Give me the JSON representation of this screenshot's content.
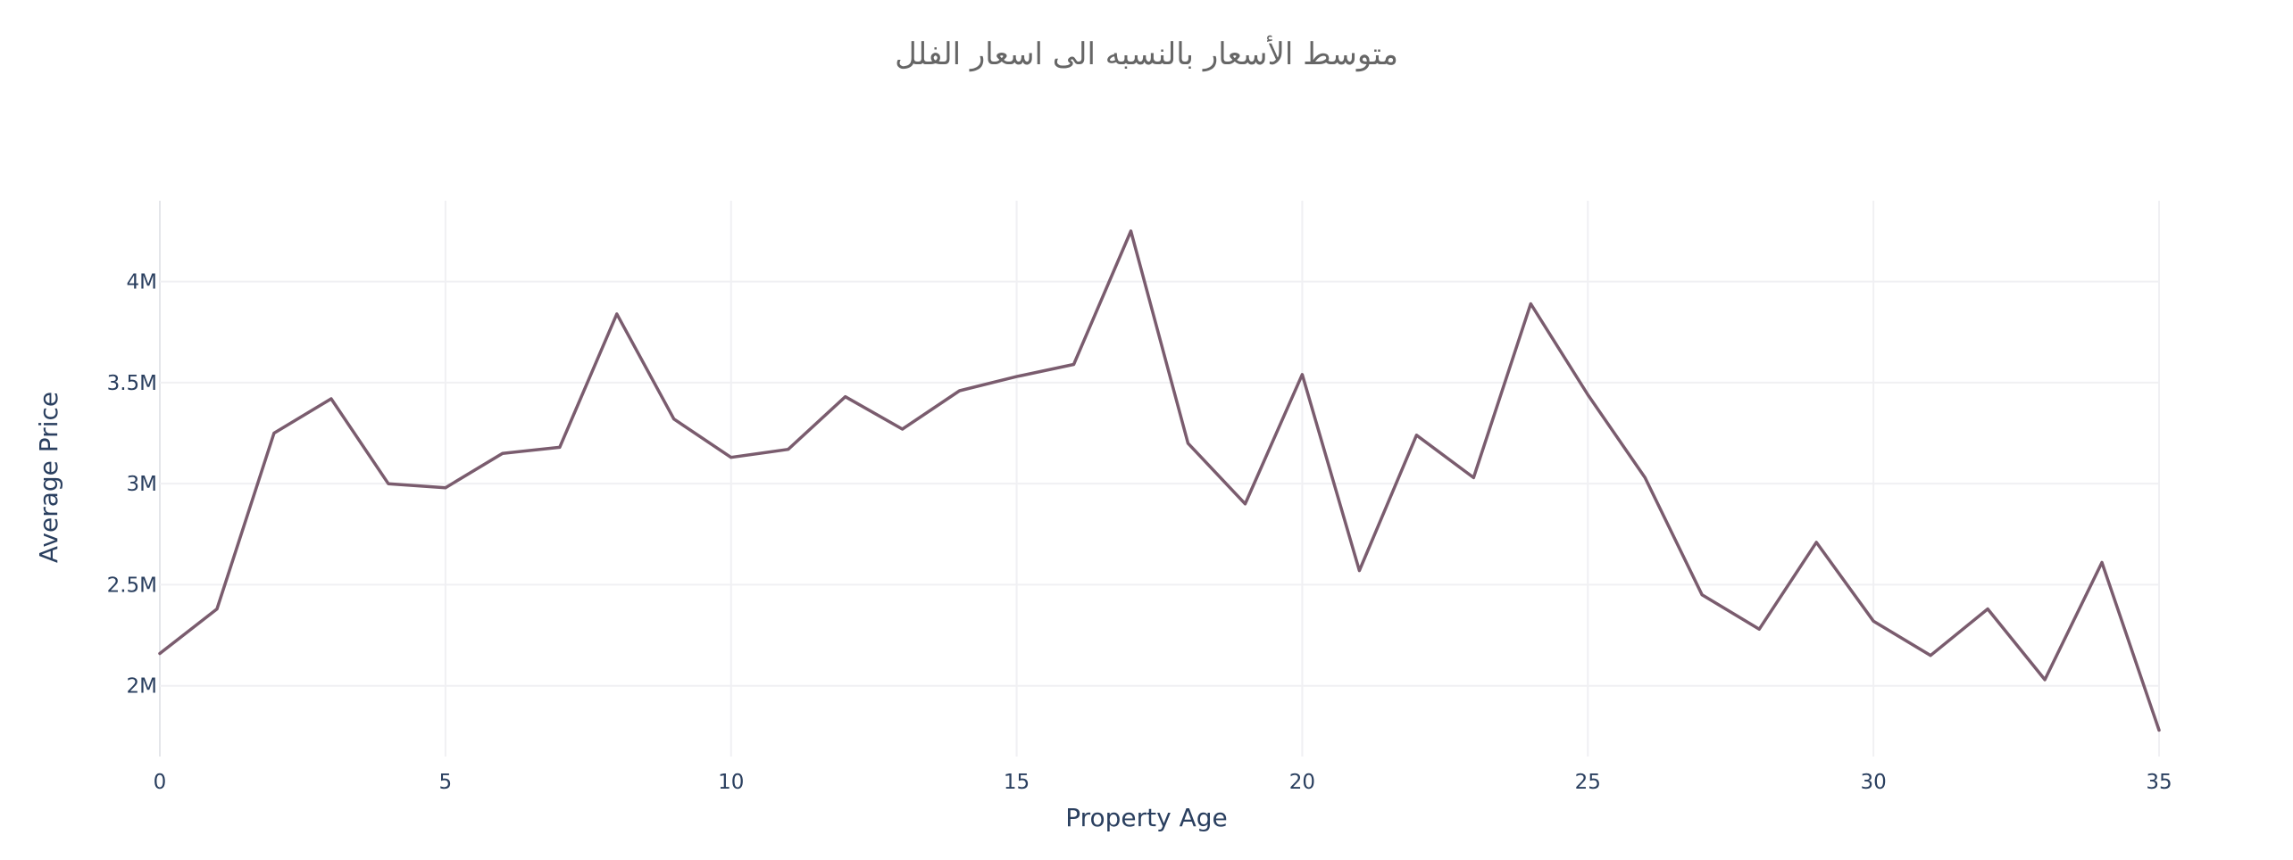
{
  "chart_data": {
    "type": "line",
    "title": "متوسط الأسعار بالنسبه الى اسعار الفلل",
    "xlabel": "Property Age",
    "ylabel": "Average Price",
    "xlim": [
      0,
      35
    ],
    "ylim": [
      1650000,
      4400000
    ],
    "grid": true,
    "line_color": "#7a5c6e",
    "x_ticks": [
      {
        "value": 0,
        "label": "0"
      },
      {
        "value": 5,
        "label": "5"
      },
      {
        "value": 10,
        "label": "10"
      },
      {
        "value": 15,
        "label": "15"
      },
      {
        "value": 20,
        "label": "20"
      },
      {
        "value": 25,
        "label": "25"
      },
      {
        "value": 30,
        "label": "30"
      },
      {
        "value": 35,
        "label": "35"
      }
    ],
    "y_ticks": [
      {
        "value": 2000000,
        "label": "2M"
      },
      {
        "value": 2500000,
        "label": "2.5M"
      },
      {
        "value": 3000000,
        "label": "3M"
      },
      {
        "value": 3500000,
        "label": "3.5M"
      },
      {
        "value": 4000000,
        "label": "4M"
      }
    ],
    "x": [
      0,
      1,
      2,
      3,
      4,
      5,
      6,
      7,
      8,
      9,
      10,
      11,
      12,
      13,
      14,
      15,
      16,
      17,
      18,
      19,
      20,
      21,
      22,
      23,
      24,
      25,
      26,
      27,
      28,
      29,
      30,
      31,
      32,
      33,
      34,
      35
    ],
    "y": [
      2160000,
      2380000,
      3250000,
      3420000,
      3000000,
      2980000,
      3150000,
      3180000,
      3840000,
      3320000,
      3130000,
      3170000,
      3430000,
      3270000,
      3460000,
      3530000,
      3590000,
      4250000,
      3200000,
      2900000,
      3540000,
      2570000,
      3240000,
      3030000,
      3890000,
      3440000,
      3030000,
      2450000,
      2280000,
      2710000,
      2320000,
      2150000,
      2380000,
      2030000,
      2610000,
      1780000
    ]
  }
}
